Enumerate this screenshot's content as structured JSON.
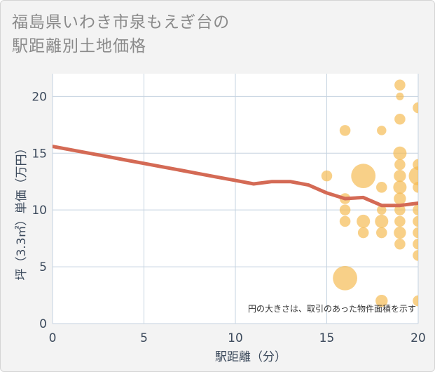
{
  "title": {
    "line1": "福島県いわき市泉もえぎ台の",
    "line2": "駅距離別土地価格"
  },
  "chart_data": {
    "type": "scatter",
    "title": "福島県いわき市泉もえぎ台の駅距離別土地価格",
    "xlabel": "駅距離（分）",
    "ylabel": "坪（3.3㎡）単価（万円）",
    "xlim": [
      0,
      20
    ],
    "ylim": [
      0,
      22
    ],
    "xticks": [
      0,
      5,
      10,
      15,
      20
    ],
    "yticks": [
      0,
      5,
      10,
      15,
      20
    ],
    "grid": true,
    "note": "円の大きさは、取引のあった物件面積を示す",
    "colors": {
      "bubble": "#f5b94f",
      "line": "#d46a55",
      "grid": "#c5d3e0",
      "plot_bg": "#ffffff"
    },
    "trend_line": {
      "x": [
        0,
        1,
        2,
        3,
        4,
        5,
        6,
        7,
        8,
        9,
        10,
        11,
        12,
        13,
        14,
        15,
        16,
        17,
        18,
        19,
        20
      ],
      "y": [
        15.6,
        15.3,
        15.0,
        14.7,
        14.4,
        14.1,
        13.8,
        13.5,
        13.2,
        12.9,
        12.6,
        12.3,
        12.5,
        12.5,
        12.2,
        11.5,
        11.0,
        11.1,
        10.4,
        10.4,
        10.6
      ]
    },
    "bubbles": [
      {
        "x": 15,
        "y": 13,
        "size": 2
      },
      {
        "x": 16,
        "y": 17,
        "size": 2
      },
      {
        "x": 16,
        "y": 11,
        "size": 2
      },
      {
        "x": 16,
        "y": 10,
        "size": 2
      },
      {
        "x": 16,
        "y": 9,
        "size": 2
      },
      {
        "x": 16,
        "y": 4,
        "size": 10
      },
      {
        "x": 17,
        "y": 13,
        "size": 10
      },
      {
        "x": 17,
        "y": 9,
        "size": 3
      },
      {
        "x": 17,
        "y": 8,
        "size": 2
      },
      {
        "x": 18,
        "y": 17,
        "size": 1.5
      },
      {
        "x": 18,
        "y": 12,
        "size": 2
      },
      {
        "x": 18,
        "y": 10,
        "size": 1.5
      },
      {
        "x": 18,
        "y": 9,
        "size": 3
      },
      {
        "x": 18,
        "y": 8,
        "size": 2
      },
      {
        "x": 18,
        "y": 2,
        "size": 2.5
      },
      {
        "x": 19,
        "y": 21,
        "size": 2
      },
      {
        "x": 19,
        "y": 20,
        "size": 1
      },
      {
        "x": 19,
        "y": 18,
        "size": 2
      },
      {
        "x": 19,
        "y": 15,
        "size": 3
      },
      {
        "x": 19,
        "y": 14,
        "size": 2
      },
      {
        "x": 19,
        "y": 13,
        "size": 2.5
      },
      {
        "x": 19,
        "y": 12,
        "size": 3
      },
      {
        "x": 19,
        "y": 11,
        "size": 2.5
      },
      {
        "x": 19,
        "y": 10,
        "size": 2
      },
      {
        "x": 19,
        "y": 9,
        "size": 2
      },
      {
        "x": 19,
        "y": 8,
        "size": 2.5
      },
      {
        "x": 19,
        "y": 7,
        "size": 2
      },
      {
        "x": 20,
        "y": 19,
        "size": 2
      },
      {
        "x": 20,
        "y": 14,
        "size": 2
      },
      {
        "x": 20,
        "y": 13,
        "size": 6
      },
      {
        "x": 20,
        "y": 12,
        "size": 2
      },
      {
        "x": 20,
        "y": 10,
        "size": 2
      },
      {
        "x": 20,
        "y": 9,
        "size": 2
      },
      {
        "x": 20,
        "y": 8,
        "size": 2
      },
      {
        "x": 20,
        "y": 7,
        "size": 2
      },
      {
        "x": 20,
        "y": 6,
        "size": 2
      },
      {
        "x": 20,
        "y": 2,
        "size": 2
      }
    ]
  }
}
